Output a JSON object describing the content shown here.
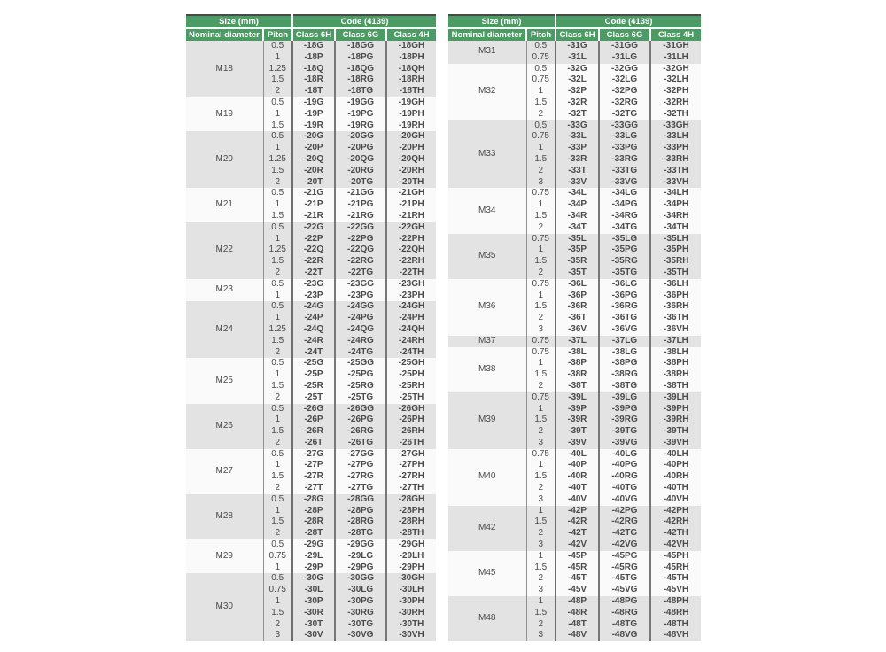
{
  "header": {
    "size_label": "Size (mm)",
    "code_label": "Code (4139)",
    "columns": [
      "Nominal diameter",
      "Pitch",
      "Class 6H",
      "Class 6G",
      "Class 4H"
    ]
  },
  "colors": {
    "header_green": "#4c9a64",
    "header_text": "#ffffff",
    "group_shade_gray": "#e3e3e3",
    "group_shade_light": "#fafafa",
    "grid_dark": "#6e6e6e",
    "grid_light": "#919191",
    "table_top_border": "#4a4a4a",
    "code_text": "#333333",
    "body_text": "#4a4a4a"
  },
  "tables": [
    {
      "side": "left",
      "groups": [
        {
          "diameter": "M18",
          "shade": "gray",
          "rows": [
            [
              "0.5",
              "-18G",
              "-18GG",
              "-18GH"
            ],
            [
              "1",
              "-18P",
              "-18PG",
              "-18PH"
            ],
            [
              "1.25",
              "-18Q",
              "-18QG",
              "-18QH"
            ],
            [
              "1.5",
              "-18R",
              "-18RG",
              "-18RH"
            ],
            [
              "2",
              "-18T",
              "-18TG",
              "-18TH"
            ]
          ]
        },
        {
          "diameter": "M19",
          "shade": "light",
          "rows": [
            [
              "0.5",
              "-19G",
              "-19GG",
              "-19GH"
            ],
            [
              "1",
              "-19P",
              "-19PG",
              "-19PH"
            ],
            [
              "1.5",
              "-19R",
              "-19RG",
              "-19RH"
            ]
          ]
        },
        {
          "diameter": "M20",
          "shade": "gray",
          "rows": [
            [
              "0.5",
              "-20G",
              "-20GG",
              "-20GH"
            ],
            [
              "1",
              "-20P",
              "-20PG",
              "-20PH"
            ],
            [
              "1.25",
              "-20Q",
              "-20QG",
              "-20QH"
            ],
            [
              "1.5",
              "-20R",
              "-20RG",
              "-20RH"
            ],
            [
              "2",
              "-20T",
              "-20TG",
              "-20TH"
            ]
          ]
        },
        {
          "diameter": "M21",
          "shade": "light",
          "rows": [
            [
              "0.5",
              "-21G",
              "-21GG",
              "-21GH"
            ],
            [
              "1",
              "-21P",
              "-21PG",
              "-21PH"
            ],
            [
              "1.5",
              "-21R",
              "-21RG",
              "-21RH"
            ]
          ]
        },
        {
          "diameter": "M22",
          "shade": "gray",
          "rows": [
            [
              "0.5",
              "-22G",
              "-22GG",
              "-22GH"
            ],
            [
              "1",
              "-22P",
              "-22PG",
              "-22PH"
            ],
            [
              "1.25",
              "-22Q",
              "-22QG",
              "-22QH"
            ],
            [
              "1.5",
              "-22R",
              "-22RG",
              "-22RH"
            ],
            [
              "2",
              "-22T",
              "-22TG",
              "-22TH"
            ]
          ]
        },
        {
          "diameter": "M23",
          "shade": "light",
          "rows": [
            [
              "0.5",
              "-23G",
              "-23GG",
              "-23GH"
            ],
            [
              "1",
              "-23P",
              "-23PG",
              "-23PH"
            ]
          ]
        },
        {
          "diameter": "M24",
          "shade": "gray",
          "rows": [
            [
              "0.5",
              "-24G",
              "-24GG",
              "-24GH"
            ],
            [
              "1",
              "-24P",
              "-24PG",
              "-24PH"
            ],
            [
              "1.25",
              "-24Q",
              "-24QG",
              "-24QH"
            ],
            [
              "1.5",
              "-24R",
              "-24RG",
              "-24RH"
            ],
            [
              "2",
              "-24T",
              "-24TG",
              "-24TH"
            ]
          ]
        },
        {
          "diameter": "M25",
          "shade": "light",
          "rows": [
            [
              "0.5",
              "-25G",
              "-25GG",
              "-25GH"
            ],
            [
              "1",
              "-25P",
              "-25PG",
              "-25PH"
            ],
            [
              "1.5",
              "-25R",
              "-25RG",
              "-25RH"
            ],
            [
              "2",
              "-25T",
              "-25TG",
              "-25TH"
            ]
          ]
        },
        {
          "diameter": "M26",
          "shade": "gray",
          "rows": [
            [
              "0.5",
              "-26G",
              "-26GG",
              "-26GH"
            ],
            [
              "1",
              "-26P",
              "-26PG",
              "-26PH"
            ],
            [
              "1.5",
              "-26R",
              "-26RG",
              "-26RH"
            ],
            [
              "2",
              "-26T",
              "-26TG",
              "-26TH"
            ]
          ]
        },
        {
          "diameter": "M27",
          "shade": "light",
          "rows": [
            [
              "0.5",
              "-27G",
              "-27GG",
              "-27GH"
            ],
            [
              "1",
              "-27P",
              "-27PG",
              "-27PH"
            ],
            [
              "1.5",
              "-27R",
              "-27RG",
              "-27RH"
            ],
            [
              "2",
              "-27T",
              "-27TG",
              "-27TH"
            ]
          ]
        },
        {
          "diameter": "M28",
          "shade": "gray",
          "rows": [
            [
              "0.5",
              "-28G",
              "-28GG",
              "-28GH"
            ],
            [
              "1",
              "-28P",
              "-28PG",
              "-28PH"
            ],
            [
              "1.5",
              "-28R",
              "-28RG",
              "-28RH"
            ],
            [
              "2",
              "-28T",
              "-28TG",
              "-28TH"
            ]
          ]
        },
        {
          "diameter": "M29",
          "shade": "light",
          "rows": [
            [
              "0.5",
              "-29G",
              "-29GG",
              "-29GH"
            ],
            [
              "0.75",
              "-29L",
              "-29LG",
              "-29LH"
            ],
            [
              "1",
              "-29P",
              "-29PG",
              "-29PH"
            ]
          ]
        },
        {
          "diameter": "M30",
          "shade": "gray",
          "rows": [
            [
              "0.5",
              "-30G",
              "-30GG",
              "-30GH"
            ],
            [
              "0.75",
              "-30L",
              "-30LG",
              "-30LH"
            ],
            [
              "1",
              "-30P",
              "-30PG",
              "-30PH"
            ],
            [
              "1.5",
              "-30R",
              "-30RG",
              "-30RH"
            ],
            [
              "2",
              "-30T",
              "-30TG",
              "-30TH"
            ],
            [
              "3",
              "-30V",
              "-30VG",
              "-30VH"
            ]
          ]
        }
      ]
    },
    {
      "side": "right",
      "groups": [
        {
          "diameter": "M31",
          "shade": "gray",
          "rows": [
            [
              "0.5",
              "-31G",
              "-31GG",
              "-31GH"
            ],
            [
              "0.75",
              "-31L",
              "-31LG",
              "-31LH"
            ]
          ]
        },
        {
          "diameter": "M32",
          "shade": "light",
          "rows": [
            [
              "0.5",
              "-32G",
              "-32GG",
              "-32GH"
            ],
            [
              "0.75",
              "-32L",
              "-32LG",
              "-32LH"
            ],
            [
              "1",
              "-32P",
              "-32PG",
              "-32PH"
            ],
            [
              "1.5",
              "-32R",
              "-32RG",
              "-32RH"
            ],
            [
              "2",
              "-32T",
              "-32TG",
              "-32TH"
            ]
          ]
        },
        {
          "diameter": "M33",
          "shade": "gray",
          "rows": [
            [
              "0.5",
              "-33G",
              "-33GG",
              "-33GH"
            ],
            [
              "0.75",
              "-33L",
              "-33LG",
              "-33LH"
            ],
            [
              "1",
              "-33P",
              "-33PG",
              "-33PH"
            ],
            [
              "1.5",
              "-33R",
              "-33RG",
              "-33RH"
            ],
            [
              "2",
              "-33T",
              "-33TG",
              "-33TH"
            ],
            [
              "3",
              "-33V",
              "-33VG",
              "-33VH"
            ]
          ]
        },
        {
          "diameter": "M34",
          "shade": "light",
          "rows": [
            [
              "0.75",
              "-34L",
              "-34LG",
              "-34LH"
            ],
            [
              "1",
              "-34P",
              "-34PG",
              "-34PH"
            ],
            [
              "1.5",
              "-34R",
              "-34RG",
              "-34RH"
            ],
            [
              "2",
              "-34T",
              "-34TG",
              "-34TH"
            ]
          ]
        },
        {
          "diameter": "M35",
          "shade": "gray",
          "rows": [
            [
              "0.75",
              "-35L",
              "-35LG",
              "-35LH"
            ],
            [
              "1",
              "-35P",
              "-35PG",
              "-35PH"
            ],
            [
              "1.5",
              "-35R",
              "-35RG",
              "-35RH"
            ],
            [
              "2",
              "-35T",
              "-35TG",
              "-35TH"
            ]
          ]
        },
        {
          "diameter": "M36",
          "shade": "light",
          "rows": [
            [
              "0.75",
              "-36L",
              "-36LG",
              "-36LH"
            ],
            [
              "1",
              "-36P",
              "-36PG",
              "-36PH"
            ],
            [
              "1.5",
              "-36R",
              "-36RG",
              "-36RH"
            ],
            [
              "2",
              "-36T",
              "-36TG",
              "-36TH"
            ],
            [
              "3",
              "-36V",
              "-36VG",
              "-36VH"
            ]
          ]
        },
        {
          "diameter": "M37",
          "shade": "gray",
          "rows": [
            [
              "0.75",
              "-37L",
              "-37LG",
              "-37LH"
            ]
          ]
        },
        {
          "diameter": "M38",
          "shade": "light",
          "rows": [
            [
              "0.75",
              "-38L",
              "-38LG",
              "-38LH"
            ],
            [
              "1",
              "-38P",
              "-38PG",
              "-38PH"
            ],
            [
              "1.5",
              "-38R",
              "-38RG",
              "-38RH"
            ],
            [
              "2",
              "-38T",
              "-38TG",
              "-38TH"
            ]
          ]
        },
        {
          "diameter": "M39",
          "shade": "gray",
          "rows": [
            [
              "0.75",
              "-39L",
              "-39LG",
              "-39LH"
            ],
            [
              "1",
              "-39P",
              "-39PG",
              "-39PH"
            ],
            [
              "1.5",
              "-39R",
              "-39RG",
              "-39RH"
            ],
            [
              "2",
              "-39T",
              "-39TG",
              "-39TH"
            ],
            [
              "3",
              "-39V",
              "-39VG",
              "-39VH"
            ]
          ]
        },
        {
          "diameter": "M40",
          "shade": "light",
          "rows": [
            [
              "0.75",
              "-40L",
              "-40LG",
              "-40LH"
            ],
            [
              "1",
              "-40P",
              "-40PG",
              "-40PH"
            ],
            [
              "1.5",
              "-40R",
              "-40RG",
              "-40RH"
            ],
            [
              "2",
              "-40T",
              "-40TG",
              "-40TH"
            ],
            [
              "3",
              "-40V",
              "-40VG",
              "-40VH"
            ]
          ]
        },
        {
          "diameter": "M42",
          "shade": "gray",
          "rows": [
            [
              "1",
              "-42P",
              "-42PG",
              "-42PH"
            ],
            [
              "1.5",
              "-42R",
              "-42RG",
              "-42RH"
            ],
            [
              "2",
              "-42T",
              "-42TG",
              "-42TH"
            ],
            [
              "3",
              "-42V",
              "-42VG",
              "-42VH"
            ]
          ]
        },
        {
          "diameter": "M45",
          "shade": "light",
          "rows": [
            [
              "1",
              "-45P",
              "-45PG",
              "-45PH"
            ],
            [
              "1.5",
              "-45R",
              "-45RG",
              "-45RH"
            ],
            [
              "2",
              "-45T",
              "-45TG",
              "-45TH"
            ],
            [
              "3",
              "-45V",
              "-45VG",
              "-45VH"
            ]
          ]
        },
        {
          "diameter": "M48",
          "shade": "gray",
          "rows": [
            [
              "1",
              "-48P",
              "-48PG",
              "-48PH"
            ],
            [
              "1.5",
              "-48R",
              "-48RG",
              "-48RH"
            ],
            [
              "2",
              "-48T",
              "-48TG",
              "-48TH"
            ],
            [
              "3",
              "-48V",
              "-48VG",
              "-48VH"
            ]
          ]
        }
      ]
    }
  ]
}
